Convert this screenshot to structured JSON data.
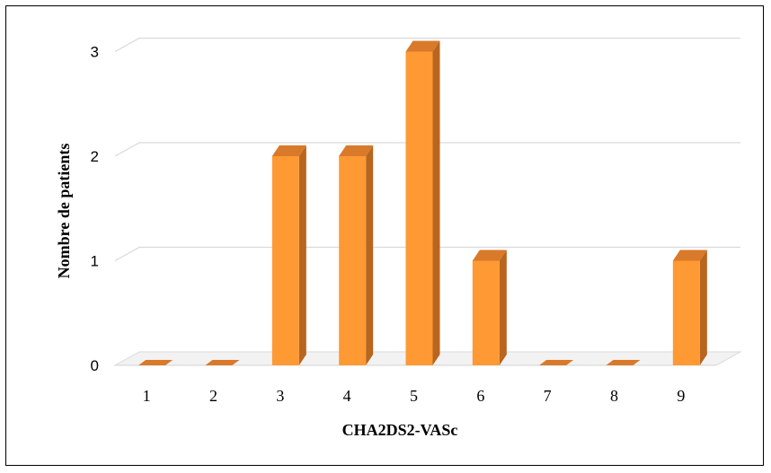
{
  "chart_data": {
    "type": "bar",
    "categories": [
      "1",
      "2",
      "3",
      "4",
      "5",
      "6",
      "7",
      "8",
      "9"
    ],
    "values": [
      0,
      0,
      2,
      2,
      3,
      1,
      0,
      0,
      1
    ],
    "yticks": [
      "0",
      "1",
      "2",
      "3"
    ],
    "xlabel": "CHA2DS2-VASc",
    "ylabel": "Nombre de patients",
    "ylim": [
      0,
      3
    ],
    "grid": true,
    "legend": "none",
    "colors": {
      "bar_front": "#FF9933",
      "bar_side": "#B8651F",
      "bar_top": "#D9792A",
      "grid": "#D9D9D9"
    }
  }
}
